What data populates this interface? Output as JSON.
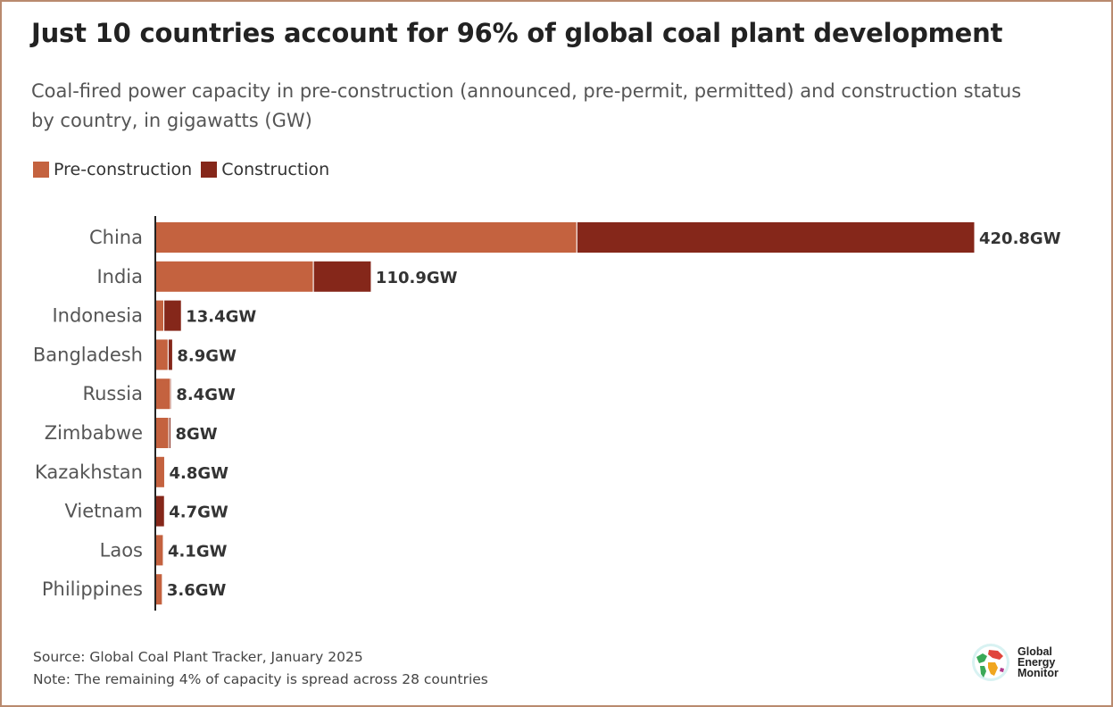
{
  "chart_data": {
    "type": "bar",
    "orientation": "horizontal",
    "stacked": true,
    "title": "Just 10 countries account for 96% of global coal plant development",
    "subtitle": "Coal-fired power capacity in pre-construction (announced, pre-permit, permitted) and construction status by country, in gigawatts (GW)",
    "categories": [
      "China",
      "India",
      "Indonesia",
      "Bangladesh",
      "Russia",
      "Zimbabwe",
      "Kazakhstan",
      "Vietnam",
      "Laos",
      "Philippines"
    ],
    "series": [
      {
        "name": "Pre-construction",
        "color": "#c4623f",
        "values": [
          216.5,
          81.2,
          4.4,
          6.6,
          7.8,
          7.0,
          4.8,
          0,
          4.1,
          3.6
        ]
      },
      {
        "name": "Construction",
        "color": "#85271a",
        "values": [
          204.3,
          29.7,
          9.0,
          2.3,
          0.6,
          1.0,
          0,
          4.7,
          0,
          0
        ]
      }
    ],
    "data_labels": [
      "420.8GW",
      "110.9GW",
      "13.4GW",
      "8.9GW",
      "8.4GW",
      "8GW",
      "4.8GW",
      "4.7GW",
      "4.1GW",
      "3.6GW"
    ],
    "xlim": [
      0,
      420.8
    ],
    "grid": false,
    "legend": "top-left"
  },
  "footer": {
    "source": "Source: Global Coal Plant Tracker, January 2025",
    "note": "Note: The remaining 4% of capacity is spread across 28 countries"
  },
  "logo": {
    "text": [
      "Global",
      "Energy",
      "Monitor"
    ]
  }
}
